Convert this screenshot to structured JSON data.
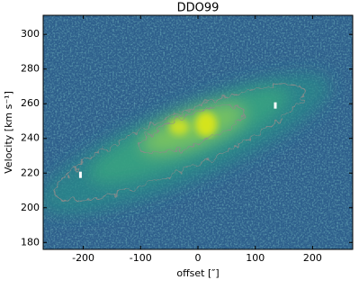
{
  "chart_data": {
    "type": "heatmap",
    "title": "DDO99",
    "xlabel": "offset [″]",
    "ylabel": "Velocity [km s⁻¹]",
    "xlim": [
      -270,
      270
    ],
    "ylim": [
      176,
      311
    ],
    "xticks": [
      -200,
      -100,
      0,
      100,
      200
    ],
    "yticks": [
      180,
      200,
      220,
      240,
      260,
      280,
      300
    ],
    "markers": {
      "x": [
        -205,
        135
      ],
      "y": [
        219,
        259
      ],
      "color": "#ffffff"
    }
  }
}
